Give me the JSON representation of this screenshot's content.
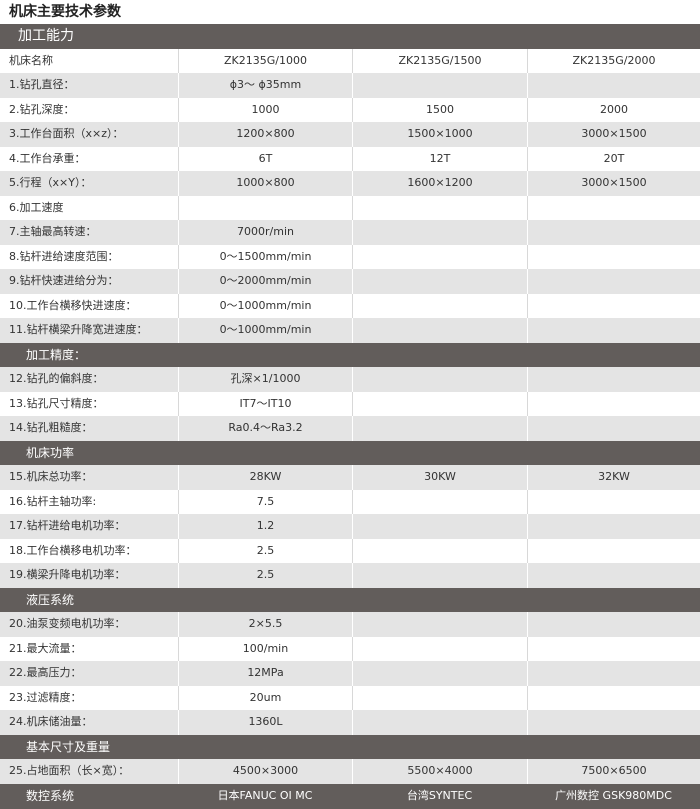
{
  "title": "机床主要技术参数",
  "colors": {
    "section_band": "#625d5b",
    "row_gray": "#e4e4e4"
  },
  "sections": [
    {
      "title": "加工能力",
      "rows": [
        [
          "机床名称",
          "ZK2135G/1000",
          "ZK2135G/1500",
          "ZK2135G/2000"
        ],
        [
          "1.钻孔直径：",
          "ϕ3～ ϕ35mm",
          "",
          ""
        ],
        [
          "2.钻孔深度：",
          "1000",
          "1500",
          "2000"
        ],
        [
          "3.工作台面积（x×z）：",
          "1200×800",
          "1500×1000",
          "3000×1500"
        ],
        [
          "4.工作台承重：",
          "6T",
          "12T",
          "20T"
        ],
        [
          "5.行程（x×Y）：",
          "1000×800",
          "1600×1200",
          "3000×1500"
        ],
        [
          "6.加工速度",
          "",
          "",
          ""
        ],
        [
          "7.主轴最高转速：",
          "7000r/min",
          "",
          ""
        ],
        [
          "8.钻杆进给速度范围：",
          "0～1500mm/min",
          "",
          ""
        ],
        [
          "9.钻杆快速进给分为：",
          "0～2000mm/min",
          "",
          ""
        ],
        [
          "10.工作台横移快进速度：",
          "0～1000mm/min",
          "",
          ""
        ],
        [
          "11.钻杆横梁升降宽进速度：",
          "0～1000mm/min",
          "",
          ""
        ]
      ]
    },
    {
      "title": "加工精度：",
      "rows": [
        [
          "12.钻孔的偏斜度：",
          "孔深×1/1000",
          "",
          ""
        ],
        [
          "13.钻孔尺寸精度：",
          "IT7～IT10",
          "",
          ""
        ],
        [
          "14.钻孔粗糙度：",
          "Ra0.4～Ra3.2",
          "",
          ""
        ]
      ]
    },
    {
      "title": "机床功率",
      "rows": [
        [
          "15.机床总功率：",
          "28KW",
          "30KW",
          "32KW"
        ],
        [
          "16.钻杆主轴功率:",
          "7.5",
          "",
          ""
        ],
        [
          "17.钻杆进给电机功率：",
          "1.2",
          "",
          ""
        ],
        [
          "18.工作台横移电机功率：",
          "2.5",
          "",
          ""
        ],
        [
          "19.横梁升降电机功率：",
          "2.5",
          "",
          ""
        ]
      ]
    },
    {
      "title": "液压系统",
      "rows": [
        [
          "20.油泵变频电机功率：",
          "2×5.5",
          "",
          ""
        ],
        [
          "21.最大流量：",
          "100/min",
          "",
          ""
        ],
        [
          "22.最高压力：",
          "12MPa",
          "",
          ""
        ],
        [
          "23.过滤精度：",
          "20um",
          "",
          ""
        ],
        [
          "24.机床储油量：",
          "1360L",
          "",
          ""
        ]
      ]
    },
    {
      "title": "基本尺寸及重量",
      "rows": [
        [
          "25.占地面积（长×宽）：",
          "4500×3000",
          "5500×4000",
          "7500×6500"
        ]
      ]
    }
  ],
  "footer": [
    "数控系统",
    "日本FANUC OI MC",
    "台湾SYNTEC",
    "广州数控 GSK980MDC"
  ]
}
